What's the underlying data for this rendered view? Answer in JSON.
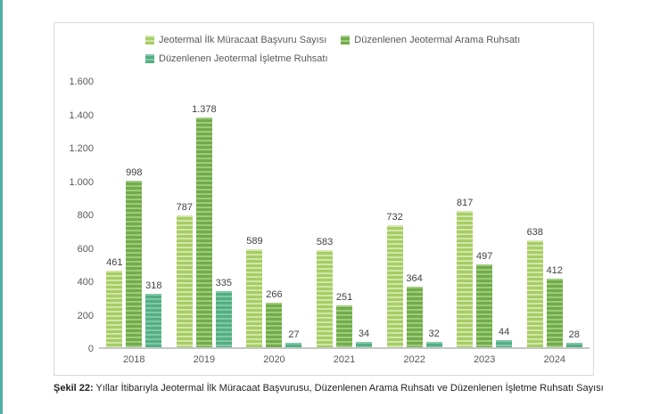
{
  "accent_color": "#4dafa5",
  "chart_data": {
    "type": "bar",
    "title": "",
    "categories": [
      "2018",
      "2019",
      "2020",
      "2021",
      "2022",
      "2023",
      "2024"
    ],
    "series": [
      {
        "name": "Jeotermal İlk Müracaat Başvuru Sayısı",
        "values": [
          461,
          787,
          589,
          583,
          732,
          817,
          638
        ],
        "labels": [
          "461",
          "787",
          "589",
          "583",
          "732",
          "817",
          "638"
        ],
        "color_light": "#d2e6a4",
        "color_dark": "#a5cd66"
      },
      {
        "name": "Düzenlenen Jeotermal Arama Ruhsatı",
        "values": [
          998,
          1378,
          266,
          251,
          364,
          497,
          412
        ],
        "labels": [
          "998",
          "1.378",
          "266",
          "251",
          "364",
          "497",
          "412"
        ],
        "color_light": "#9ecb7d",
        "color_dark": "#71ac49"
      },
      {
        "name": "Düzenlenen Jeotermal İşletme Ruhsatı",
        "values": [
          318,
          335,
          27,
          34,
          32,
          44,
          28
        ],
        "labels": [
          "318",
          "335",
          "27",
          "34",
          "32",
          "44",
          "28"
        ],
        "color_light": "#83c7a7",
        "color_dark": "#52b083"
      }
    ],
    "xlabel": "",
    "ylabel": "",
    "ylim": [
      0,
      1600
    ],
    "yticks": {
      "values": [
        0,
        200,
        400,
        600,
        800,
        1000,
        1200,
        1400,
        1600
      ],
      "labels": [
        "0",
        "200",
        "400",
        "600",
        "800",
        "1.000",
        "1.200",
        "1.400",
        "1.600"
      ]
    },
    "grid": false,
    "legend_position": "top"
  },
  "caption": {
    "prefix": "Şekil 22:",
    "text": "Yıllar İtibarıyla Jeotermal İlk Müracaat Başvurusu, Düzenlenen Arama Ruhsatı ve Düzenlenen İşletme Ruhsatı Sayısı"
  }
}
